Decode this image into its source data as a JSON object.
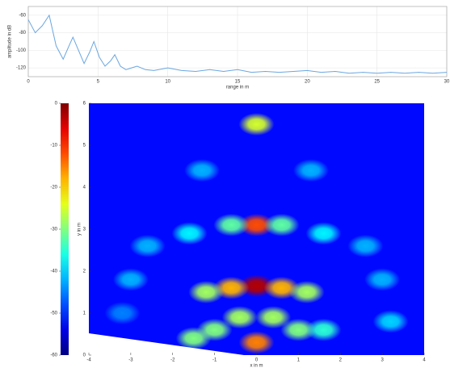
{
  "chart_data": [
    {
      "type": "line",
      "xlabel": "range in m",
      "ylabel": "amplitude in dB",
      "color": "#6aa6e0",
      "x": [
        0,
        0.5,
        1,
        1.5,
        2,
        2.5,
        3,
        3.2,
        3.6,
        4,
        4.4,
        4.7,
        5.1,
        5.5,
        5.9,
        6.2,
        6.6,
        7,
        7.4,
        7.8,
        8.4,
        9,
        10,
        11,
        12,
        13,
        14,
        15,
        16,
        17,
        18,
        19,
        20,
        21,
        22,
        23,
        24,
        25,
        26,
        27,
        28,
        29,
        30
      ],
      "values": [
        -65,
        -80,
        -72,
        -60,
        -95,
        -110,
        -92,
        -85,
        -100,
        -115,
        -102,
        -90,
        -108,
        -118,
        -112,
        -105,
        -118,
        -122,
        -120,
        -118,
        -122,
        -123,
        -120,
        -123,
        -124,
        -122,
        -124,
        -122,
        -125,
        -124,
        -125,
        -124,
        -123,
        -125,
        -124,
        -126,
        -125,
        -126,
        -125,
        -126,
        -125,
        -126,
        -125
      ],
      "xlim": [
        0,
        30
      ],
      "xticks": [
        0,
        5,
        10,
        15,
        20,
        25,
        30
      ],
      "ylim": [
        -130,
        -50
      ],
      "yticks": [
        -60,
        -80,
        -100,
        -120
      ],
      "grid": true
    },
    {
      "type": "heatmap",
      "ylabel": "y in m",
      "xlabel": "x in m",
      "xlim": [
        -4,
        4
      ],
      "xticks": [
        -4,
        -3,
        -2,
        -1,
        0,
        1,
        2,
        3,
        4
      ],
      "ylim": [
        0,
        6
      ],
      "yticks": [
        0,
        1,
        2,
        3,
        4,
        5,
        6
      ],
      "clim": [
        -60,
        0
      ],
      "cticks": [
        0,
        -10,
        -20,
        -30,
        -40,
        -50,
        -60
      ],
      "background": -52,
      "spots": {
        "x": [
          0,
          0,
          0,
          -0.6,
          0.6,
          -1.2,
          1.2,
          -0.6,
          0.6,
          -1.6,
          1.6,
          -2.6,
          2.6,
          -3,
          3,
          -1.3,
          1.3,
          0,
          -1,
          1,
          1.6,
          -1.5,
          -3.2,
          3.2,
          -0.4,
          0.4
        ],
        "y": [
          5.5,
          3.1,
          1.65,
          1.6,
          1.6,
          1.5,
          1.5,
          3.1,
          3.1,
          2.9,
          2.9,
          2.6,
          2.6,
          1.8,
          1.8,
          4.4,
          4.4,
          0.3,
          0.6,
          0.6,
          0.6,
          0.4,
          1.0,
          0.8,
          0.9,
          0.9
        ],
        "values": [
          -25,
          -12,
          -3,
          -18,
          -18,
          -28,
          -28,
          -32,
          -32,
          -38,
          -38,
          -42,
          -42,
          -42,
          -42,
          -42,
          -42,
          -15,
          -30,
          -30,
          -35,
          -30,
          -45,
          -40,
          -28,
          -28
        ]
      }
    }
  ]
}
